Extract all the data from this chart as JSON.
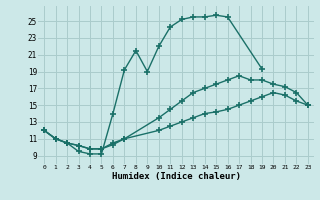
{
  "xlabel": "Humidex (Indice chaleur)",
  "bg_color": "#cce8e8",
  "grid_color": "#aacccc",
  "line_color": "#1a7068",
  "xlim": [
    -0.5,
    23.5
  ],
  "ylim": [
    8.0,
    26.8
  ],
  "xticks": [
    0,
    1,
    2,
    3,
    4,
    5,
    6,
    7,
    8,
    9,
    10,
    11,
    12,
    13,
    14,
    15,
    16,
    17,
    18,
    19,
    20,
    21,
    22,
    23
  ],
  "yticks": [
    9,
    11,
    13,
    15,
    17,
    19,
    21,
    23,
    25
  ],
  "line1_x": [
    0,
    1,
    2,
    3,
    4,
    5,
    6,
    7,
    8,
    9,
    10,
    11,
    12,
    13,
    14,
    15,
    16,
    19
  ],
  "line1_y": [
    12.0,
    11.0,
    10.5,
    9.5,
    9.2,
    9.2,
    14.0,
    19.2,
    21.5,
    19.0,
    22.0,
    24.3,
    25.2,
    25.5,
    25.5,
    25.7,
    25.5,
    19.3
  ],
  "line2_x": [
    0,
    1,
    2,
    3,
    4,
    5,
    6,
    7,
    10,
    11,
    12,
    13,
    14,
    15,
    16,
    17,
    18,
    19,
    20,
    21,
    22,
    23
  ],
  "line2_y": [
    12.0,
    11.0,
    10.5,
    10.2,
    9.8,
    9.8,
    10.5,
    11.0,
    13.5,
    14.5,
    15.5,
    16.5,
    17.0,
    17.5,
    18.0,
    18.5,
    18.0,
    18.0,
    17.5,
    17.2,
    16.5,
    15.0
  ],
  "line3_x": [
    0,
    1,
    2,
    3,
    4,
    5,
    6,
    7,
    10,
    11,
    12,
    13,
    14,
    15,
    16,
    17,
    18,
    19,
    20,
    21,
    22,
    23
  ],
  "line3_y": [
    12.0,
    11.0,
    10.5,
    10.2,
    9.8,
    9.8,
    10.3,
    11.0,
    12.0,
    12.5,
    13.0,
    13.5,
    14.0,
    14.2,
    14.5,
    15.0,
    15.5,
    16.0,
    16.5,
    16.2,
    15.5,
    15.0
  ]
}
